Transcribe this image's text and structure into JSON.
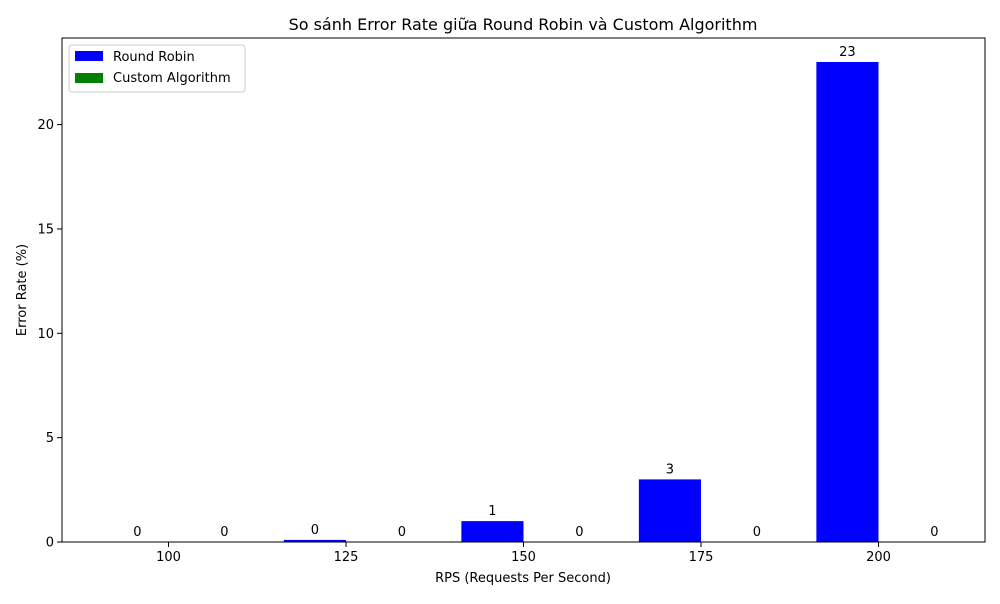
{
  "chart_data": {
    "type": "bar",
    "title": "So sánh Error Rate giữa Round Robin và Custom Algorithm",
    "xlabel": "RPS (Requests Per Second)",
    "ylabel": "Error Rate (%)",
    "categories": [
      "100",
      "125",
      "150",
      "175",
      "200"
    ],
    "x_values": [
      100,
      125,
      150,
      175,
      200
    ],
    "xlim": [
      85,
      215
    ],
    "ylim": [
      0,
      24.15
    ],
    "yticks": [
      0,
      5,
      10,
      15,
      20
    ],
    "grid": false,
    "legend_position": "top-left",
    "series": [
      {
        "name": "Round Robin",
        "color": "#0000ff",
        "values": [
          0,
          0.1,
          1,
          3,
          23
        ],
        "data_labels": [
          "0",
          "0",
          "1",
          "3",
          "23"
        ]
      },
      {
        "name": "Custom Algorithm",
        "color": "#008000",
        "values": [
          0,
          0,
          0,
          0,
          0
        ],
        "data_labels": [
          "0",
          "0",
          "0",
          "0",
          "0"
        ]
      }
    ]
  }
}
